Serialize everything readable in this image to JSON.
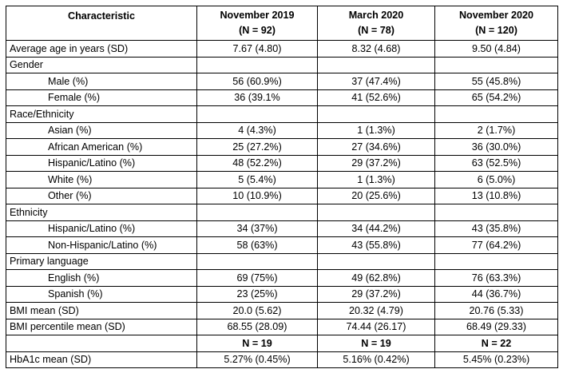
{
  "header": {
    "characteristic": "Characteristic",
    "col1_date": "November 2019",
    "col1_n": "(N = 92)",
    "col2_date": "March 2020",
    "col2_n": "(N = 78)",
    "col3_date": "November 2020",
    "col3_n": "(N = 120)"
  },
  "rows": [
    {
      "label": "Average age in years (SD)",
      "indent": false,
      "values": [
        "7.67 (4.80)",
        "8.32 (4.68)",
        "9.50 (4.84)"
      ]
    },
    {
      "label": "Gender",
      "indent": false,
      "values": [
        "",
        "",
        ""
      ]
    },
    {
      "label": "Male (%)",
      "indent": true,
      "values": [
        "56 (60.9%)",
        "37 (47.4%)",
        "55 (45.8%)"
      ]
    },
    {
      "label": "Female (%)",
      "indent": true,
      "values": [
        "36 (39.1%",
        "41 (52.6%)",
        "65 (54.2%)"
      ]
    },
    {
      "label": "Race/Ethnicity",
      "indent": false,
      "values": [
        "",
        "",
        ""
      ]
    },
    {
      "label": "Asian (%)",
      "indent": true,
      "values": [
        "4 (4.3%)",
        "1 (1.3%)",
        "2 (1.7%)"
      ]
    },
    {
      "label": "African American (%)",
      "indent": true,
      "values": [
        "25 (27.2%)",
        "27 (34.6%)",
        "36 (30.0%)"
      ]
    },
    {
      "label": "Hispanic/Latino (%)",
      "indent": true,
      "values": [
        "48 (52.2%)",
        "29 (37.2%)",
        "63 (52.5%)"
      ]
    },
    {
      "label": "White (%)",
      "indent": true,
      "values": [
        "5 (5.4%)",
        "1 (1.3%)",
        "6 (5.0%)"
      ]
    },
    {
      "label": "Other (%)",
      "indent": true,
      "values": [
        "10 (10.9%)",
        "20 (25.6%)",
        "13 (10.8%)"
      ]
    },
    {
      "label": "Ethnicity",
      "indent": false,
      "values": [
        "",
        "",
        ""
      ]
    },
    {
      "label": "Hispanic/Latino (%)",
      "indent": true,
      "values": [
        "34 (37%)",
        "34 (44.2%)",
        "43 (35.8%)"
      ]
    },
    {
      "label": "Non-Hispanic/Latino (%)",
      "indent": true,
      "values": [
        "58 (63%)",
        "43 (55.8%)",
        "77 (64.2%)"
      ]
    },
    {
      "label": "Primary language",
      "indent": false,
      "values": [
        "",
        "",
        ""
      ]
    },
    {
      "label": "English (%)",
      "indent": true,
      "values": [
        "69 (75%)",
        "49 (62.8%)",
        "76 (63.3%)"
      ]
    },
    {
      "label": "Spanish (%)",
      "indent": true,
      "values": [
        "23 (25%)",
        "29 (37.2%)",
        "44 (36.7%)"
      ]
    },
    {
      "label": "BMI mean (SD)",
      "indent": false,
      "values": [
        "20.0 (5.62)",
        "20.32 (4.79)",
        "20.76 (5.33)"
      ]
    },
    {
      "label": "BMI percentile mean (SD)",
      "indent": false,
      "values": [
        "68.55 (28.09)",
        "74.44 (26.17)",
        "68.49 (29.33)"
      ]
    },
    {
      "label": "",
      "indent": false,
      "bold_values": true,
      "values": [
        "N = 19",
        "N = 19",
        "N = 22"
      ]
    },
    {
      "label": "HbA1c mean (SD)",
      "indent": false,
      "values": [
        "5.27% (0.45%)",
        "5.16% (0.42%)",
        "5.45% (0.23%)"
      ]
    }
  ]
}
